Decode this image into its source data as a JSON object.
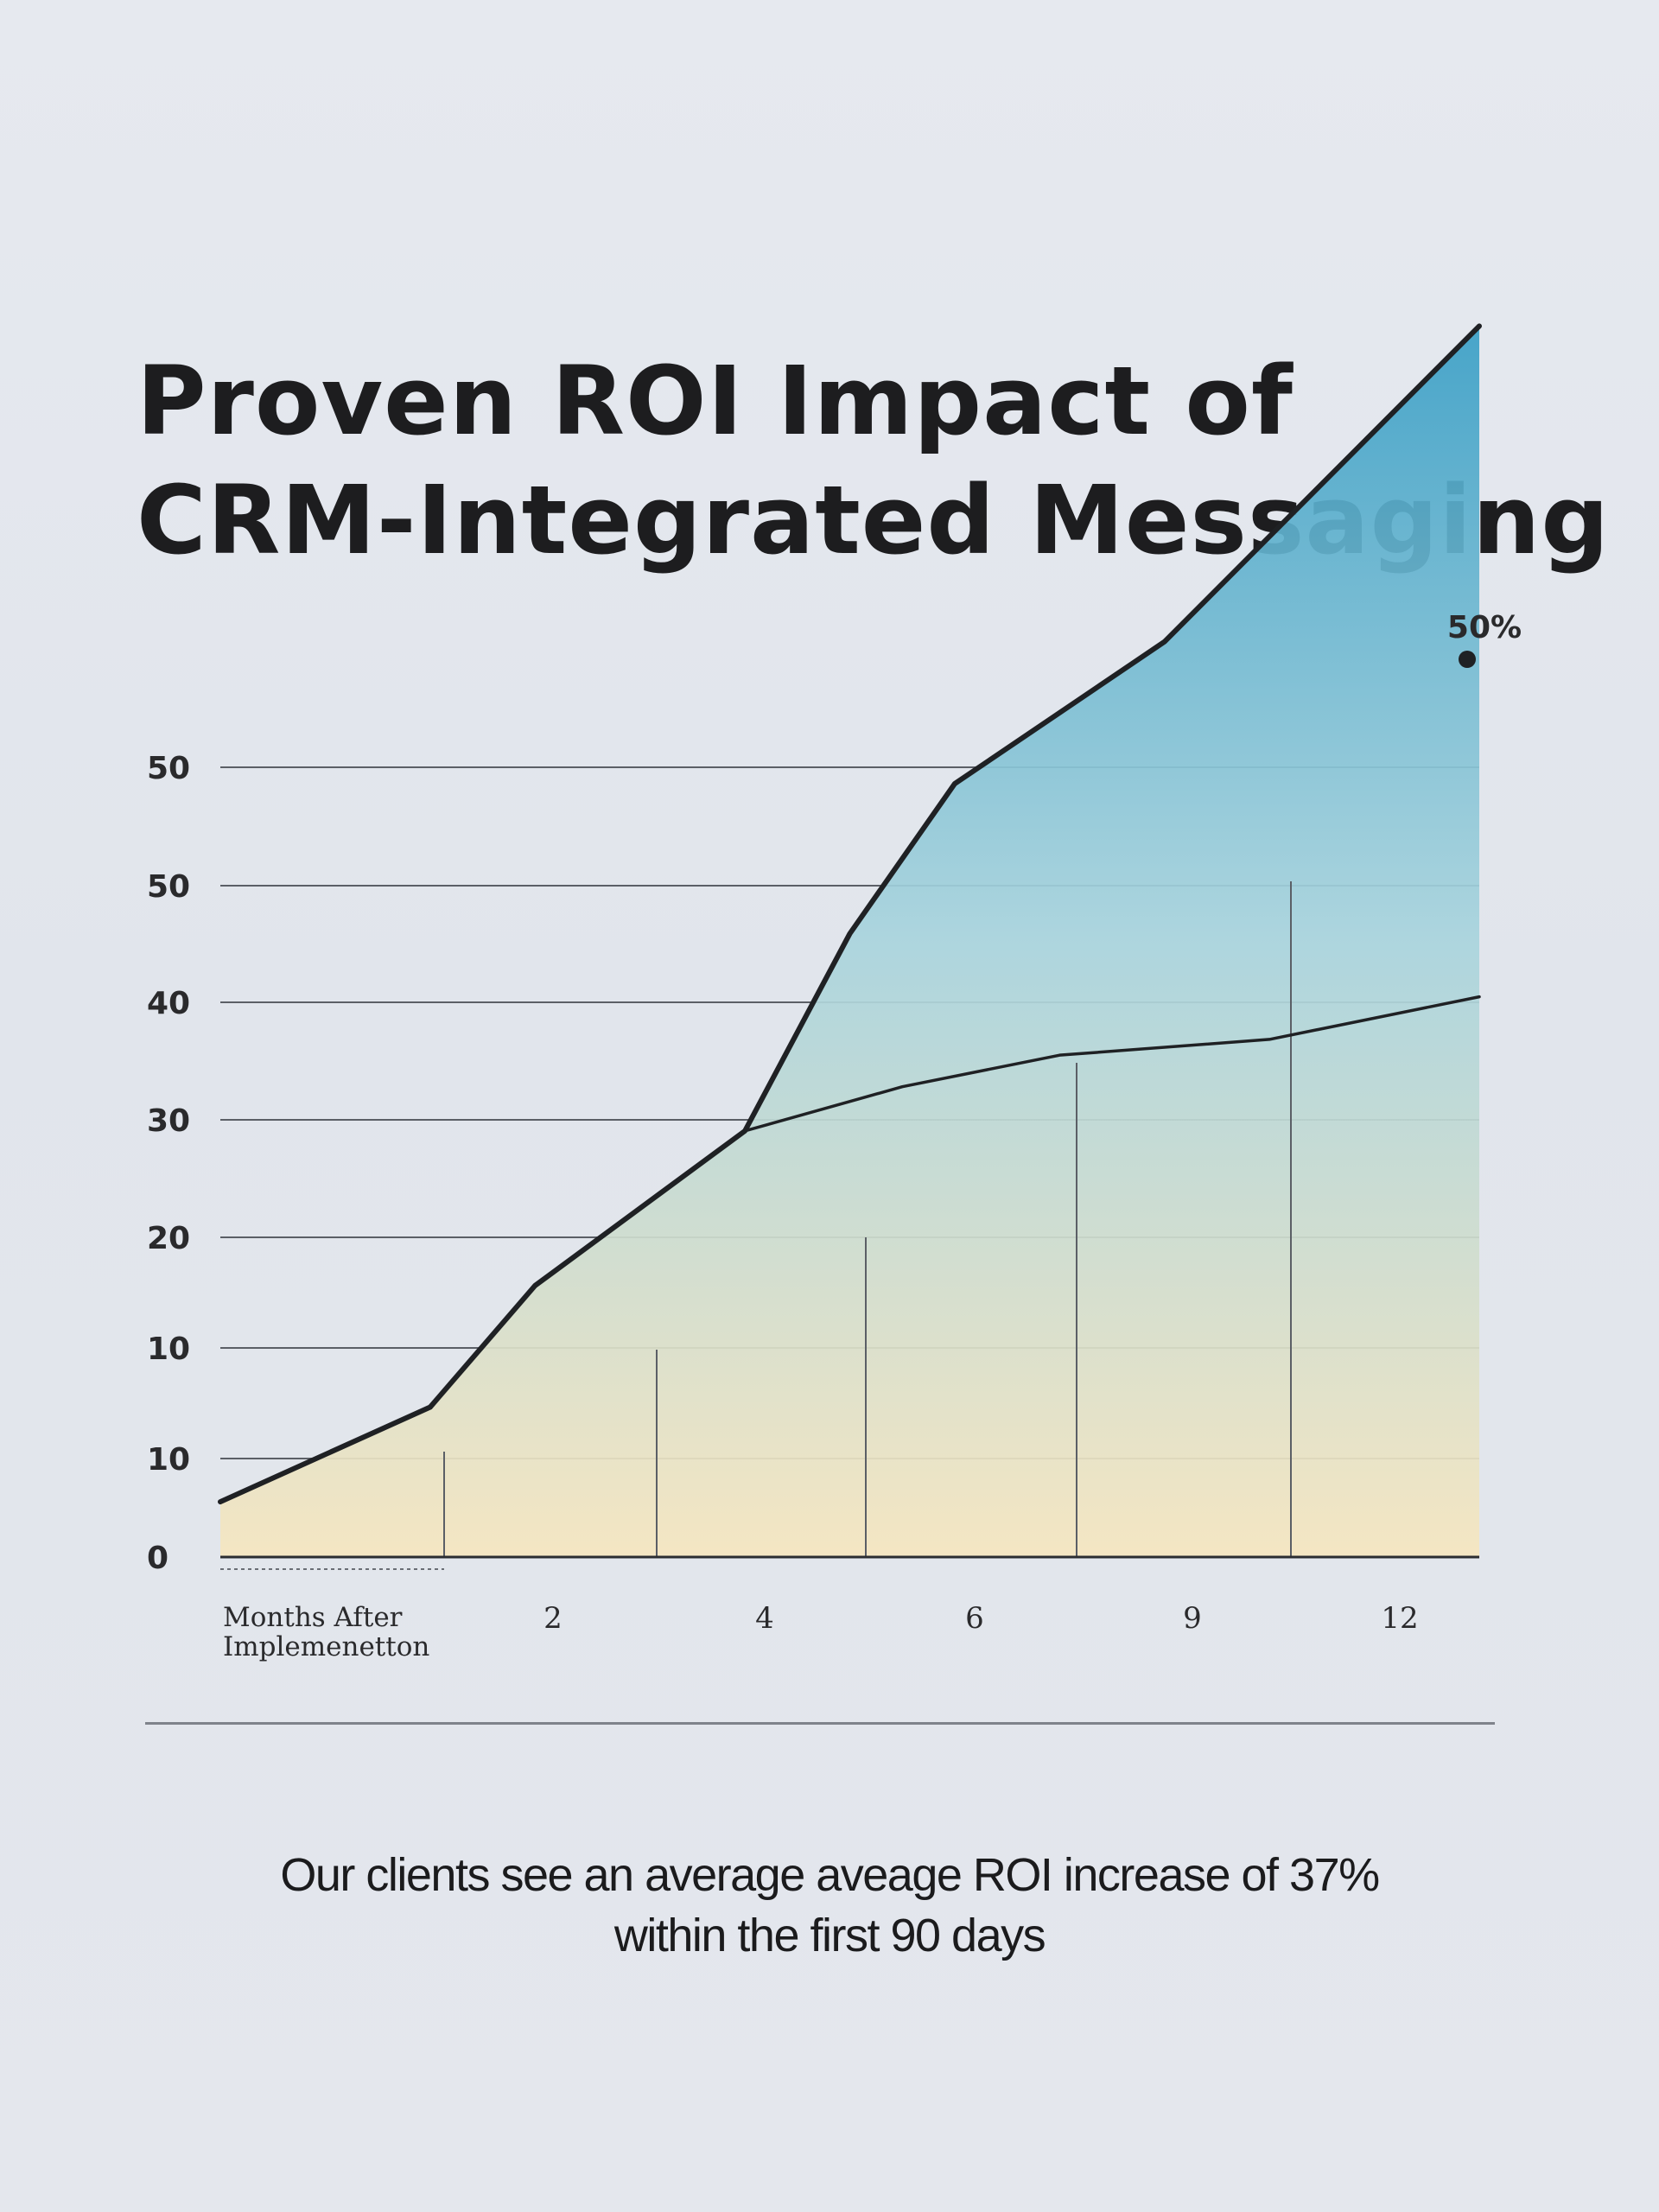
{
  "title": {
    "line1": "Proven ROI Impact of",
    "line2": "CRM-Integrated Messaging"
  },
  "caption": {
    "line1": "Our clients see an average aveage ROI increase of  37%",
    "line2": "within the first 90 days"
  },
  "chart_data": {
    "type": "area",
    "x_axis_label_lines": [
      "Months After",
      "Implemenetton"
    ],
    "x_tick_labels": [
      "2",
      "4",
      "6",
      "9",
      "12"
    ],
    "y_tick_labels": [
      "0",
      "10",
      "10",
      "20",
      "30",
      "40",
      "50",
      "50"
    ],
    "ylim": [
      0,
      68
    ],
    "grid": "horizontal",
    "end_label": "50%",
    "series": [
      {
        "values": [
          {
            "x": 0,
            "y": 3.5
          },
          {
            "x": 2,
            "y": 9.5
          },
          {
            "x": 3,
            "y": 17.2
          },
          {
            "x": 5,
            "y": 27
          },
          {
            "x": 6,
            "y": 39.5
          },
          {
            "x": 7,
            "y": 49
          },
          {
            "x": 9,
            "y": 58
          },
          {
            "x": 12,
            "y": 78
          }
        ]
      },
      {
        "values": [
          {
            "x": 5,
            "y": 27
          },
          {
            "x": 6.5,
            "y": 29.8
          },
          {
            "x": 8,
            "y": 31.8
          },
          {
            "x": 10,
            "y": 32.8
          },
          {
            "x": 12,
            "y": 35.5
          }
        ]
      }
    ],
    "colors": {
      "line": "#1f2124",
      "area_top": "#3a9fc6",
      "area_mid": "#a9d4dd",
      "area_bottom": "#f6e6bf",
      "grid": "#5b5f66"
    }
  }
}
